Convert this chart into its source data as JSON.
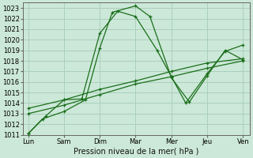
{
  "xlabel": "Pression niveau de la mer( hPa )",
  "x_labels": [
    "Lun",
    "Sam",
    "Dim",
    "Mar",
    "Mer",
    "Jeu",
    "Ven"
  ],
  "x_positions": [
    0,
    1,
    2,
    3,
    4,
    5,
    6
  ],
  "ylim": [
    1011,
    1023.5
  ],
  "yticks": [
    1011,
    1012,
    1013,
    1014,
    1015,
    1016,
    1017,
    1018,
    1019,
    1020,
    1021,
    1022,
    1023
  ],
  "background_color": "#cce8d8",
  "grid_color": "#aacfbe",
  "line_color": "#1a6e1a",
  "series": [
    {
      "x": [
        0,
        0.4,
        1.0,
        1.6,
        2.0,
        2.35,
        3.0,
        3.4,
        4.0,
        4.5,
        5.0,
        5.5,
        6.0
      ],
      "y": [
        1011.1,
        1012.5,
        1013.2,
        1014.3,
        1019.2,
        1022.6,
        1023.2,
        1022.2,
        1016.4,
        1014.1,
        1016.6,
        1019.0,
        1018.1
      ]
    },
    {
      "x": [
        0,
        0.5,
        1.0,
        1.5,
        2.0,
        2.5,
        3.0,
        3.6,
        4.0,
        4.4,
        5.0,
        5.5,
        6.0
      ],
      "y": [
        1011.1,
        1012.8,
        1014.3,
        1014.4,
        1020.6,
        1022.7,
        1022.2,
        1019.0,
        1016.5,
        1014.0,
        1016.8,
        1018.9,
        1019.5
      ]
    },
    {
      "x": [
        0,
        1,
        2,
        3,
        4,
        5,
        6
      ],
      "y": [
        1013.0,
        1013.8,
        1014.8,
        1015.8,
        1016.5,
        1017.3,
        1018.0
      ]
    },
    {
      "x": [
        0,
        1,
        2,
        3,
        4,
        5,
        6
      ],
      "y": [
        1013.5,
        1014.3,
        1015.3,
        1016.1,
        1017.0,
        1017.8,
        1018.2
      ]
    }
  ],
  "figsize": [
    3.2,
    2.0
  ],
  "dpi": 100,
  "tick_fontsize": 6,
  "xlabel_fontsize": 7,
  "linewidth": 0.9,
  "markersize": 3.5
}
